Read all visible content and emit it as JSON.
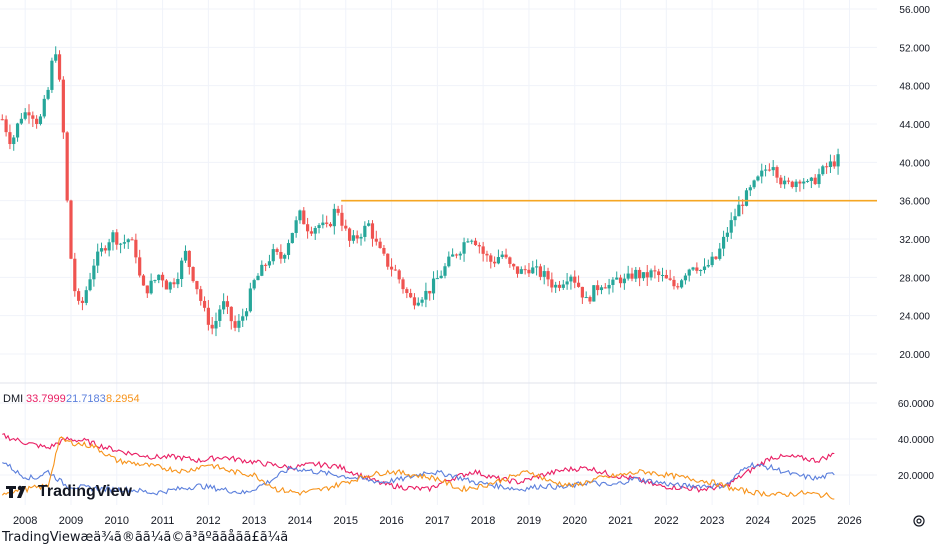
{
  "caption": "TradingViewæä¾ã®ãã¼ã©ã³ãºã­ãåãã£ã¼ã",
  "logo_text": "TradingView",
  "colors": {
    "up": "#26a69a",
    "down": "#ef5350",
    "level": "#f5a623",
    "dmi_adx": "#e91e63",
    "dmi_plus": "#5b7fdc",
    "dmi_minus": "#f7931a",
    "grid": "#f0f3fa"
  },
  "chart_data": [
    {
      "type": "candlestick",
      "title": "",
      "x_ticks": [
        "2008",
        "2009",
        "2010",
        "2011",
        "2012",
        "2013",
        "2014",
        "2015",
        "2016",
        "2017",
        "2018",
        "2019",
        "2020",
        "2021",
        "2022",
        "2023",
        "2024",
        "2025",
        "2026"
      ],
      "y_ticks": [
        "20.000",
        "24.000",
        "28.000",
        "32.000",
        "36.000",
        "40.000",
        "44.000",
        "48.000",
        "52.000",
        "56.000"
      ],
      "ylim": [
        16.0,
        57.0
      ],
      "horizontal_line": 36.0,
      "horizontal_line_start": 2014.9,
      "monthly_close_path": [
        [
          2007.5,
          44.5
        ],
        [
          2007.7,
          42.0
        ],
        [
          2007.9,
          44.8
        ],
        [
          2008.1,
          45.5
        ],
        [
          2008.3,
          44.0
        ],
        [
          2008.5,
          47.5
        ],
        [
          2008.65,
          52.5
        ],
        [
          2008.8,
          46.0
        ],
        [
          2008.9,
          37.0
        ],
        [
          2009.0,
          30.0
        ],
        [
          2009.1,
          26.0
        ],
        [
          2009.2,
          24.5
        ],
        [
          2009.35,
          27.0
        ],
        [
          2009.5,
          29.5
        ],
        [
          2009.7,
          31.0
        ],
        [
          2009.9,
          32.5
        ],
        [
          2010.1,
          31.5
        ],
        [
          2010.25,
          32.0
        ],
        [
          2010.4,
          31.0
        ],
        [
          2010.5,
          28.0
        ],
        [
          2010.6,
          26.5
        ],
        [
          2010.8,
          27.5
        ],
        [
          2010.95,
          28.5
        ],
        [
          2011.1,
          27.0
        ],
        [
          2011.3,
          28.0
        ],
        [
          2011.5,
          30.5
        ],
        [
          2011.6,
          29.0
        ],
        [
          2011.75,
          27.0
        ],
        [
          2011.9,
          24.5
        ],
        [
          2012.1,
          22.5
        ],
        [
          2012.3,
          25.5
        ],
        [
          2012.5,
          23.5
        ],
        [
          2012.6,
          22.5
        ],
        [
          2012.8,
          24.5
        ],
        [
          2013.0,
          27.5
        ],
        [
          2013.2,
          29.0
        ],
        [
          2013.4,
          30.5
        ],
        [
          2013.6,
          30.0
        ],
        [
          2013.8,
          32.5
        ],
        [
          2014.0,
          34.5
        ],
        [
          2014.2,
          33.0
        ],
        [
          2014.4,
          33.5
        ],
        [
          2014.6,
          33.0
        ],
        [
          2014.8,
          35.5
        ],
        [
          2014.9,
          34.0
        ],
        [
          2015.1,
          31.5
        ],
        [
          2015.3,
          32.5
        ],
        [
          2015.5,
          33.5
        ],
        [
          2015.7,
          31.0
        ],
        [
          2015.9,
          29.5
        ],
        [
          2016.1,
          28.5
        ],
        [
          2016.3,
          26.5
        ],
        [
          2016.45,
          25.5
        ],
        [
          2016.6,
          26.0
        ],
        [
          2016.8,
          26.5
        ],
        [
          2016.95,
          27.5
        ],
        [
          2017.1,
          28.5
        ],
        [
          2017.3,
          30.0
        ],
        [
          2017.5,
          31.0
        ],
        [
          2017.7,
          32.5
        ],
        [
          2017.9,
          31.5
        ],
        [
          2018.0,
          30.5
        ],
        [
          2018.2,
          29.5
        ],
        [
          2018.4,
          30.5
        ],
        [
          2018.6,
          29.0
        ],
        [
          2018.8,
          28.5
        ],
        [
          2019.0,
          29.0
        ],
        [
          2019.2,
          28.5
        ],
        [
          2019.4,
          28.0
        ],
        [
          2019.55,
          27.0
        ],
        [
          2019.7,
          27.5
        ],
        [
          2019.9,
          28.5
        ],
        [
          2020.1,
          27.0
        ],
        [
          2020.25,
          25.5
        ],
        [
          2020.4,
          26.5
        ],
        [
          2020.6,
          27.5
        ],
        [
          2020.8,
          27.0
        ],
        [
          2020.95,
          28.0
        ],
        [
          2021.1,
          27.5
        ],
        [
          2021.3,
          28.5
        ],
        [
          2021.5,
          28.0
        ],
        [
          2021.7,
          28.5
        ],
        [
          2021.9,
          28.0
        ],
        [
          2022.05,
          27.5
        ],
        [
          2022.2,
          27.0
        ],
        [
          2022.4,
          28.5
        ],
        [
          2022.6,
          29.5
        ],
        [
          2022.8,
          28.5
        ],
        [
          2022.95,
          29.5
        ],
        [
          2023.1,
          30.0
        ],
        [
          2023.3,
          32.5
        ],
        [
          2023.45,
          34.0
        ],
        [
          2023.6,
          35.5
        ],
        [
          2023.75,
          36.5
        ],
        [
          2023.9,
          37.5
        ],
        [
          2024.05,
          38.5
        ],
        [
          2024.2,
          39.5
        ],
        [
          2024.35,
          40.0
        ],
        [
          2024.45,
          38.5
        ],
        [
          2024.6,
          37.5
        ],
        [
          2024.8,
          38.0
        ],
        [
          2024.95,
          38.5
        ],
        [
          2025.1,
          37.5
        ],
        [
          2025.3,
          38.5
        ],
        [
          2025.5,
          39.5
        ],
        [
          2025.65,
          40.0
        ],
        [
          2025.8,
          40.5
        ]
      ]
    },
    {
      "type": "line",
      "title": "DMI",
      "legend": [
        "DMI",
        "33.7999",
        "21.7183",
        "8.2954"
      ],
      "y_ticks": [
        "20.0000",
        "40.0000",
        "60.0000"
      ],
      "ylim": [
        8.0,
        64.0
      ],
      "series": [
        {
          "values_path": [
            [
              2007.5,
              42
            ],
            [
              2008.0,
              38
            ],
            [
              2008.5,
              35
            ],
            [
              2008.9,
              40
            ],
            [
              2009.3,
              39
            ],
            [
              2009.8,
              35
            ],
            [
              2010.3,
              32
            ],
            [
              2010.8,
              30
            ],
            [
              2011.3,
              30
            ],
            [
              2011.8,
              28
            ],
            [
              2012.3,
              30
            ],
            [
              2012.8,
              28
            ],
            [
              2013.3,
              26
            ],
            [
              2013.8,
              24
            ],
            [
              2014.3,
              26
            ],
            [
              2014.8,
              25
            ],
            [
              2015.3,
              20
            ],
            [
              2015.8,
              15
            ],
            [
              2016.3,
              13
            ],
            [
              2016.8,
              12
            ],
            [
              2017.3,
              18
            ],
            [
              2017.8,
              22
            ],
            [
              2018.3,
              18
            ],
            [
              2018.8,
              16
            ],
            [
              2019.3,
              20
            ],
            [
              2019.8,
              23
            ],
            [
              2020.3,
              24
            ],
            [
              2020.8,
              20
            ],
            [
              2021.3,
              18
            ],
            [
              2021.8,
              14
            ],
            [
              2022.3,
              13
            ],
            [
              2022.8,
              12
            ],
            [
              2023.3,
              14
            ],
            [
              2023.8,
              22
            ],
            [
              2024.3,
              30
            ],
            [
              2024.8,
              30
            ],
            [
              2025.3,
              28
            ],
            [
              2025.7,
              32
            ]
          ]
        },
        {
          "values_path": [
            [
              2007.5,
              28
            ],
            [
              2007.9,
              20
            ],
            [
              2008.2,
              18
            ],
            [
              2008.5,
              22
            ],
            [
              2008.9,
              14
            ],
            [
              2009.3,
              13
            ],
            [
              2009.8,
              12
            ],
            [
              2010.3,
              12
            ],
            [
              2010.8,
              10
            ],
            [
              2011.3,
              12
            ],
            [
              2011.8,
              14
            ],
            [
              2012.3,
              12
            ],
            [
              2012.8,
              10
            ],
            [
              2013.3,
              16
            ],
            [
              2013.8,
              24
            ],
            [
              2014.3,
              22
            ],
            [
              2014.8,
              20
            ],
            [
              2015.3,
              18
            ],
            [
              2015.8,
              16
            ],
            [
              2016.3,
              18
            ],
            [
              2016.8,
              22
            ],
            [
              2017.3,
              20
            ],
            [
              2017.8,
              16
            ],
            [
              2018.3,
              14
            ],
            [
              2018.8,
              12
            ],
            [
              2019.3,
              14
            ],
            [
              2019.8,
              13
            ],
            [
              2020.3,
              16
            ],
            [
              2020.8,
              14
            ],
            [
              2021.3,
              18
            ],
            [
              2021.8,
              16
            ],
            [
              2022.3,
              14
            ],
            [
              2022.8,
              14
            ],
            [
              2023.3,
              14
            ],
            [
              2023.8,
              26
            ],
            [
              2024.3,
              24
            ],
            [
              2024.8,
              20
            ],
            [
              2025.3,
              18
            ],
            [
              2025.7,
              21
            ]
          ]
        },
        {
          "values_path": [
            [
              2007.5,
              10
            ],
            [
              2008.0,
              12
            ],
            [
              2008.5,
              14
            ],
            [
              2008.75,
              40
            ],
            [
              2009.0,
              38
            ],
            [
              2009.5,
              36
            ],
            [
              2010.0,
              28
            ],
            [
              2010.5,
              26
            ],
            [
              2011.0,
              24
            ],
            [
              2011.5,
              22
            ],
            [
              2012.0,
              26
            ],
            [
              2012.5,
              22
            ],
            [
              2013.0,
              20
            ],
            [
              2013.5,
              12
            ],
            [
              2014.0,
              10
            ],
            [
              2014.5,
              12
            ],
            [
              2015.0,
              16
            ],
            [
              2015.5,
              20
            ],
            [
              2016.0,
              22
            ],
            [
              2016.5,
              20
            ],
            [
              2017.0,
              18
            ],
            [
              2017.5,
              12
            ],
            [
              2018.0,
              14
            ],
            [
              2018.5,
              18
            ],
            [
              2019.0,
              22
            ],
            [
              2019.5,
              16
            ],
            [
              2020.0,
              14
            ],
            [
              2020.5,
              18
            ],
            [
              2021.0,
              20
            ],
            [
              2021.5,
              22
            ],
            [
              2022.0,
              20
            ],
            [
              2022.5,
              18
            ],
            [
              2023.0,
              16
            ],
            [
              2023.5,
              12
            ],
            [
              2024.0,
              10
            ],
            [
              2024.5,
              9
            ],
            [
              2025.0,
              10
            ],
            [
              2025.7,
              8
            ]
          ]
        }
      ]
    }
  ]
}
